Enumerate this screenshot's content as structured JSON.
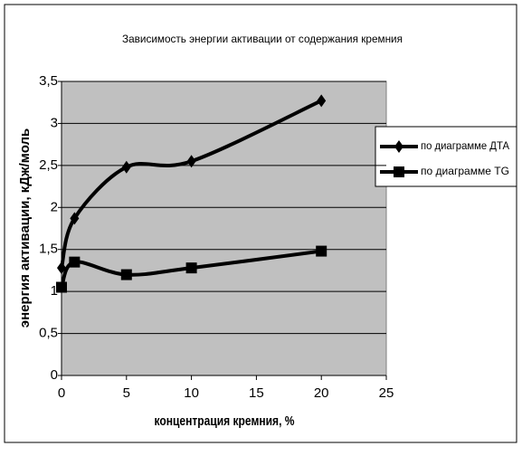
{
  "chart_data": {
    "type": "line",
    "title": "Зависимость энергии активации от содержания кремния",
    "x_label": "концентрация кремния, %",
    "y_label": "энергия активации, кДж/моль",
    "xlim": [
      0,
      25
    ],
    "xticks": [
      0,
      5,
      10,
      15,
      20,
      25
    ],
    "ylim": [
      0,
      3.5
    ],
    "yticks": [
      0,
      {
        "value": 0.5,
        "label": "0,5"
      },
      1,
      {
        "value": 1.5,
        "label": "1,5"
      },
      2,
      {
        "value": 2.5,
        "label": "2,5"
      },
      3,
      {
        "value": 3.5,
        "label": "3,5"
      }
    ],
    "grid": true,
    "legend": "right",
    "series": [
      {
        "name": "по диаграмме ДТА",
        "color": "#000000",
        "marker": "diamond",
        "x": [
          0,
          1,
          5,
          10,
          20
        ],
        "values": [
          1.28,
          1.87,
          2.48,
          2.55,
          3.27
        ]
      },
      {
        "name": "по диаграмме TG",
        "color": "#000000",
        "marker": "square",
        "x": [
          0,
          1,
          5,
          10,
          20
        ],
        "values": [
          1.05,
          1.35,
          1.2,
          1.28,
          1.48
        ]
      }
    ]
  }
}
